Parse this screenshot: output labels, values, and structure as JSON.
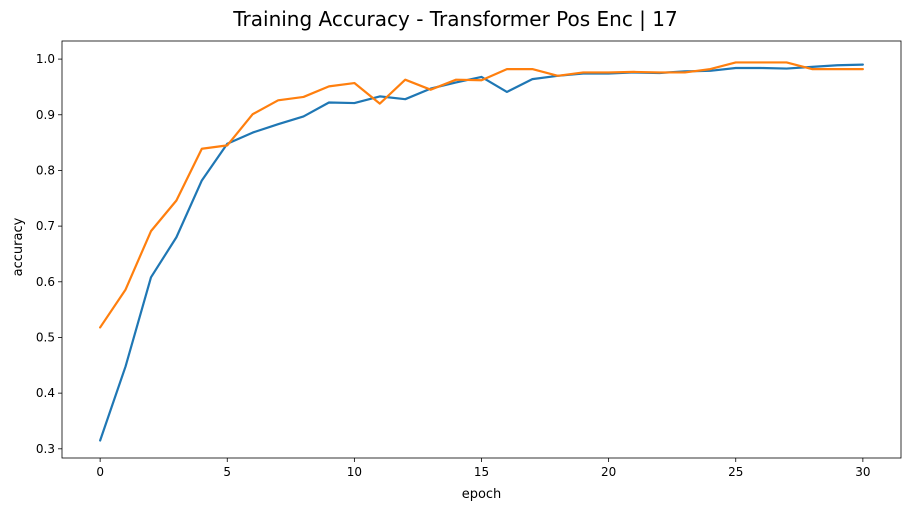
{
  "chart_data": {
    "type": "line",
    "title": "Training Accuracy - Transformer Pos Enc | 17",
    "xlabel": "epoch",
    "ylabel": "accuracy",
    "xlim": [
      -1.5,
      31.5
    ],
    "ylim": [
      0.2835,
      1.0325
    ],
    "xticks": [
      0,
      5,
      10,
      15,
      20,
      25,
      30
    ],
    "yticks": [
      0.3,
      0.4,
      0.5,
      0.6,
      0.7,
      0.8,
      0.9,
      1.0
    ],
    "grid": false,
    "legend": null,
    "x": [
      0,
      1,
      2,
      3,
      4,
      5,
      6,
      7,
      8,
      9,
      10,
      11,
      12,
      13,
      14,
      15,
      16,
      17,
      18,
      19,
      20,
      21,
      22,
      23,
      24,
      25,
      26,
      27,
      28,
      29,
      30
    ],
    "series": [
      {
        "color": "#1f77b4",
        "values": [
          0.315,
          0.448,
          0.608,
          0.68,
          0.782,
          0.848,
          0.868,
          0.883,
          0.897,
          0.922,
          0.921,
          0.933,
          0.928,
          0.947,
          0.958,
          0.968,
          0.941,
          0.964,
          0.97,
          0.974,
          0.974,
          0.976,
          0.975,
          0.978,
          0.979,
          0.984,
          0.984,
          0.983,
          0.986,
          0.989,
          0.99
        ]
      },
      {
        "color": "#ff7f0e",
        "values": [
          0.518,
          0.586,
          0.691,
          0.746,
          0.839,
          0.845,
          0.901,
          0.926,
          0.932,
          0.951,
          0.957,
          0.92,
          0.963,
          0.945,
          0.963,
          0.962,
          0.982,
          0.982,
          0.97,
          0.976,
          0.976,
          0.977,
          0.976,
          0.976,
          0.982,
          0.994,
          0.994,
          0.994,
          0.982,
          0.982,
          0.982
        ]
      }
    ]
  }
}
